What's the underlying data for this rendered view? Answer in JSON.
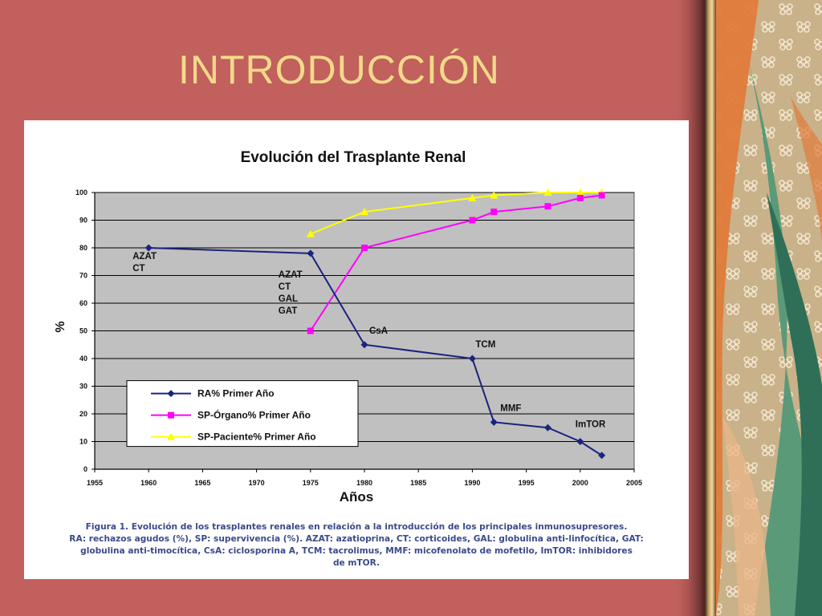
{
  "slide": {
    "title": "INTRODUCCIÓN"
  },
  "colors": {
    "slide_background": "#c1605d",
    "title_text": "#f2d98a",
    "plot_area": "#c0c0c0",
    "caption_text": "#3a4a8a"
  },
  "caption": {
    "lines": [
      "Figura 1. Evolución de los trasplantes renales en relación a la  introducción de los principales inmunosupresores.",
      "RA: rechazos agudos (%), SP: supervivencia (%). AZAT: azatioprina, CT: corticoides, GAL: globulina anti-linfocítica, GAT:",
      "globulina anti-timocítica, CsA: ciclosporina A, TCM: tacrolimus, MMF: micofenolato de mofetilo, ImTOR: inhibidores",
      "de mTOR."
    ]
  },
  "chart_data": {
    "type": "line",
    "title": "Evolución del Trasplante Renal",
    "xlabel": "Años",
    "ylabel": "%",
    "xlim": [
      1955,
      2005
    ],
    "ylim": [
      0,
      100
    ],
    "x_ticks": [
      1955,
      1960,
      1965,
      1970,
      1975,
      1980,
      1985,
      1990,
      1995,
      2000,
      2005
    ],
    "y_ticks": [
      0,
      10,
      20,
      30,
      40,
      50,
      60,
      70,
      80,
      90,
      100
    ],
    "grid": "horizontal",
    "legend_position": "bottom-left inside plot",
    "series": [
      {
        "name": "RA% Primer Año",
        "color": "#1a237e",
        "marker": "diamond",
        "points": [
          [
            1960,
            80
          ],
          [
            1975,
            78
          ],
          [
            1980,
            45
          ],
          [
            1990,
            40
          ],
          [
            1992,
            17
          ],
          [
            1997,
            15
          ],
          [
            2000,
            10
          ],
          [
            2002,
            5
          ]
        ]
      },
      {
        "name": "SP-Órgano% Primer Año",
        "color": "#ff00ff",
        "marker": "square",
        "points": [
          [
            1975,
            50
          ],
          [
            1980,
            80
          ],
          [
            1990,
            90
          ],
          [
            1992,
            93
          ],
          [
            1997,
            95
          ],
          [
            2000,
            98
          ],
          [
            2002,
            99
          ]
        ]
      },
      {
        "name": "SP-Paciente% Primer Año",
        "color": "#ffff00",
        "marker": "triangle",
        "points": [
          [
            1975,
            85
          ],
          [
            1980,
            93
          ],
          [
            1990,
            98
          ],
          [
            1992,
            99
          ],
          [
            1997,
            100
          ],
          [
            2000,
            100
          ],
          [
            2002,
            100
          ]
        ]
      }
    ],
    "annotations": [
      {
        "lines": [
          "AZAT",
          "CT"
        ],
        "x": 1960,
        "y": 80
      },
      {
        "lines": [
          "AZAT",
          "CT",
          "GAL",
          "GAT"
        ],
        "x": 1975,
        "y": 78
      },
      {
        "lines": [
          "CsA"
        ],
        "x": 1980,
        "y": 45
      },
      {
        "lines": [
          "TCM"
        ],
        "x": 1990,
        "y": 40
      },
      {
        "lines": [
          "MMF"
        ],
        "x": 1992,
        "y": 17
      },
      {
        "lines": [
          "ImTOR"
        ],
        "x": 2000,
        "y": 10
      }
    ]
  }
}
